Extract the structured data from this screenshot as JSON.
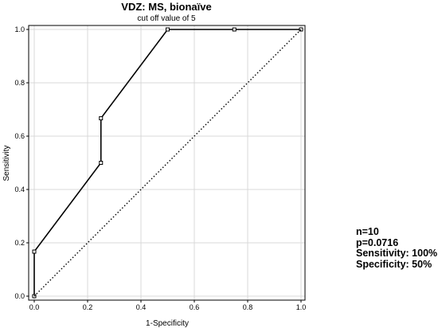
{
  "chart_data": {
    "type": "line",
    "title": "VDZ: MS, bionaïve",
    "subtitle": "cut off value of 5",
    "xlabel": "1-Specificity",
    "ylabel": "Sensitivity",
    "xlim": [
      0,
      1
    ],
    "ylim": [
      0,
      1
    ],
    "x_ticks": [
      "0.0",
      "0.2",
      "0.4",
      "0.6",
      "0.8",
      "1.0"
    ],
    "y_ticks": [
      "0.0",
      "0.2",
      "0.4",
      "0.6",
      "0.8",
      "1.0"
    ],
    "grid": true,
    "series": [
      {
        "style": "solid",
        "markers": true,
        "x": [
          0.0,
          0.0,
          0.25,
          0.25,
          0.5,
          0.5,
          0.75,
          1.0
        ],
        "y": [
          0.0,
          0.167,
          0.5,
          0.667,
          1.0,
          1.0,
          1.0,
          1.0
        ]
      },
      {
        "style": "dotted",
        "markers": false,
        "x": [
          0,
          1
        ],
        "y": [
          0,
          1
        ]
      }
    ]
  },
  "stats": {
    "n": "n=10",
    "p": "p=0.0716",
    "sensitivity": "Sensitivity: 100%",
    "specificity": "Specificity: 50%"
  }
}
